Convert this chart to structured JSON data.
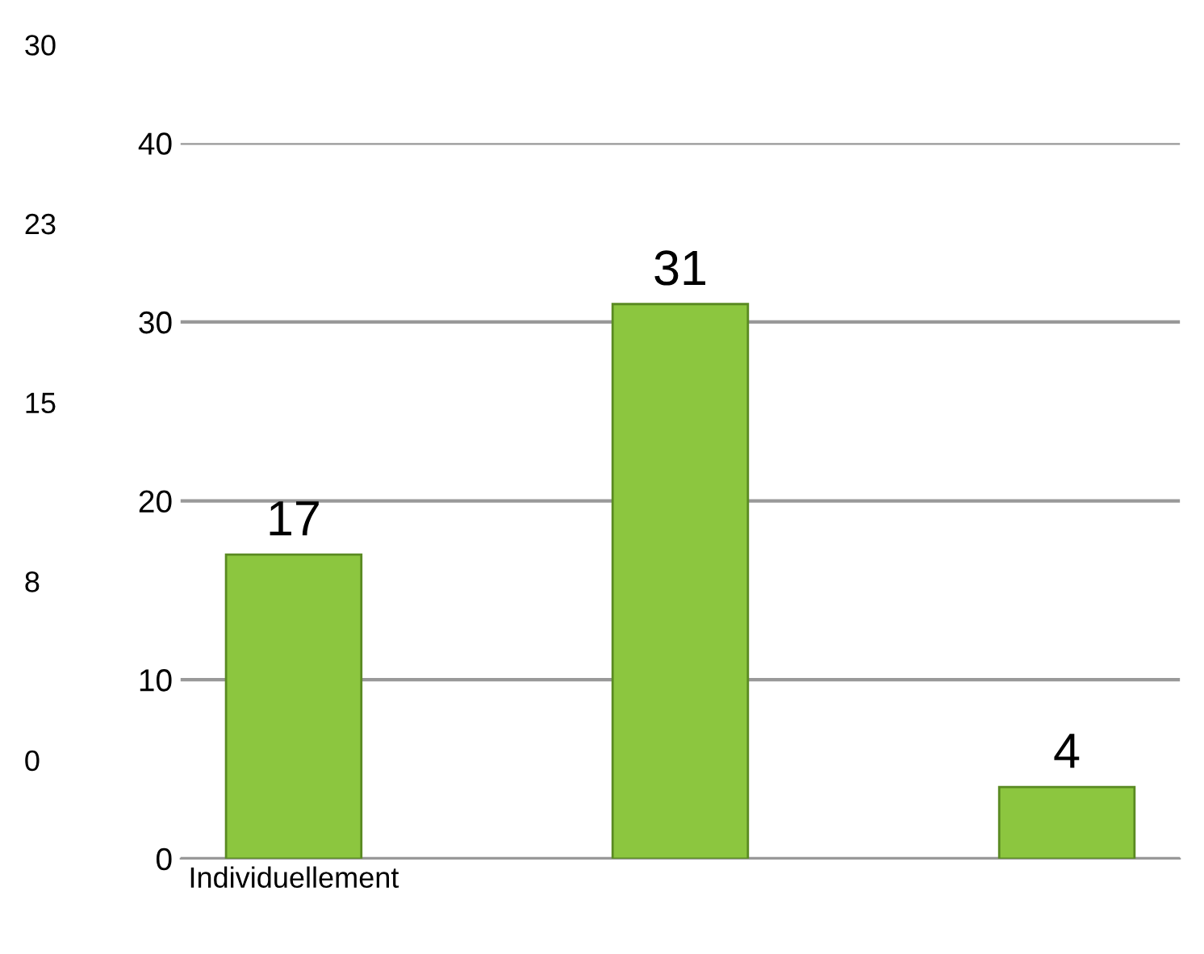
{
  "chart_data": {
    "type": "bar",
    "categories": [
      "Individuellement",
      null,
      null
    ],
    "values": [
      17,
      31,
      4
    ],
    "color": "#8cc63f",
    "data_labels": true,
    "ylim": [
      0,
      40
    ],
    "yticks": [
      0,
      10,
      20,
      30,
      40
    ],
    "grid": "y",
    "annotations": [
      "30",
      "23",
      "15",
      "8",
      "0"
    ]
  }
}
